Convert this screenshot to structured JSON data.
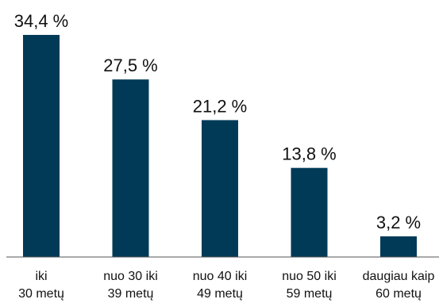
{
  "chart_data": {
    "type": "bar",
    "categories": [
      [
        "iki",
        "30 metų"
      ],
      [
        "nuo 30 iki",
        "39 metų"
      ],
      [
        "nuo 40 iki",
        "49 metų"
      ],
      [
        "nuo 50 iki",
        "59 metų"
      ],
      [
        "daugiau kaip",
        "60 metų"
      ]
    ],
    "values": [
      34.4,
      27.5,
      21.2,
      13.8,
      3.2
    ],
    "value_labels": [
      "34,4 %",
      "27,5 %",
      "21,2 %",
      "13,8 %",
      "3,2 %"
    ],
    "title": "",
    "xlabel": "",
    "ylabel": "",
    "ylim": [
      0,
      34.4
    ],
    "grid": false,
    "bar_color": "#003a57",
    "axis_color": "#555555"
  }
}
